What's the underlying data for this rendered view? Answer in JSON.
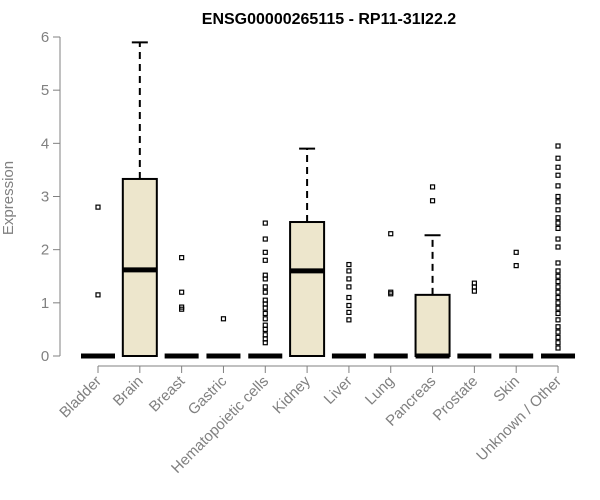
{
  "chart_data": {
    "type": "box",
    "title": "ENSG00000265115 - RP11-31I22.2",
    "ylabel": "Expression",
    "xlabel": "",
    "ylim": [
      0,
      6
    ],
    "yticks": [
      "0",
      "1",
      "2",
      "3",
      "4",
      "5",
      "6"
    ],
    "box_fill": "#ede6cc",
    "categories": [
      "Bladder",
      "Brain",
      "Breast",
      "Gastric",
      "Hematopoietic cells",
      "Kidney",
      "Liver",
      "Lung",
      "Pancreas",
      "Prostate",
      "Skin",
      "Unknown / Other"
    ],
    "boxes": [
      {
        "q1": 0,
        "median": 0,
        "q3": 0,
        "whisker_low": 0,
        "whisker_high": 0,
        "outliers": [
          1.15,
          2.8
        ]
      },
      {
        "q1": 0,
        "median": 1.62,
        "q3": 3.33,
        "whisker_low": 0,
        "whisker_high": 5.9,
        "outliers": []
      },
      {
        "q1": 0,
        "median": 0,
        "q3": 0,
        "whisker_low": 0,
        "whisker_high": 0,
        "outliers": [
          0.88,
          0.92,
          1.2,
          1.85
        ]
      },
      {
        "q1": 0,
        "median": 0,
        "q3": 0,
        "whisker_low": 0,
        "whisker_high": 0,
        "outliers": [
          0.7
        ]
      },
      {
        "q1": 0,
        "median": 0,
        "q3": 0,
        "whisker_low": 0,
        "whisker_high": 0,
        "outliers": [
          0.25,
          0.32,
          0.4,
          0.5,
          0.58,
          0.7,
          0.8,
          0.9,
          0.98,
          1.05,
          1.2,
          1.3,
          1.45,
          1.52,
          1.8,
          1.95,
          2.2,
          2.5
        ]
      },
      {
        "q1": 0,
        "median": 1.6,
        "q3": 2.52,
        "whisker_low": 0,
        "whisker_high": 3.9,
        "outliers": []
      },
      {
        "q1": 0,
        "median": 0,
        "q3": 0,
        "whisker_low": 0,
        "whisker_high": 0,
        "outliers": [
          0.68,
          0.82,
          0.95,
          1.1,
          1.3,
          1.45,
          1.6,
          1.72
        ]
      },
      {
        "q1": 0,
        "median": 0,
        "q3": 0,
        "whisker_low": 0,
        "whisker_high": 0,
        "outliers": [
          1.17,
          1.2,
          2.3
        ]
      },
      {
        "q1": 0,
        "median": 0,
        "q3": 1.15,
        "whisker_low": 0,
        "whisker_high": 2.27,
        "outliers": [
          2.92,
          3.18
        ]
      },
      {
        "q1": 0,
        "median": 0,
        "q3": 0,
        "whisker_low": 0,
        "whisker_high": 0,
        "outliers": [
          1.22,
          1.3,
          1.37
        ]
      },
      {
        "q1": 0,
        "median": 0,
        "q3": 0,
        "whisker_low": 0,
        "whisker_high": 0,
        "outliers": [
          1.7,
          1.95
        ]
      },
      {
        "q1": 0,
        "median": 0,
        "q3": 0,
        "whisker_low": 0,
        "whisker_high": 0,
        "outliers": [
          0.15,
          0.25,
          0.35,
          0.45,
          0.55,
          0.68,
          0.8,
          0.9,
          1.0,
          1.1,
          1.2,
          1.3,
          1.4,
          1.5,
          1.6,
          1.75,
          2.05,
          2.2,
          2.4,
          2.5,
          2.6,
          2.75,
          2.9,
          3.0,
          3.2,
          3.4,
          3.55,
          3.72,
          3.95
        ]
      }
    ]
  }
}
